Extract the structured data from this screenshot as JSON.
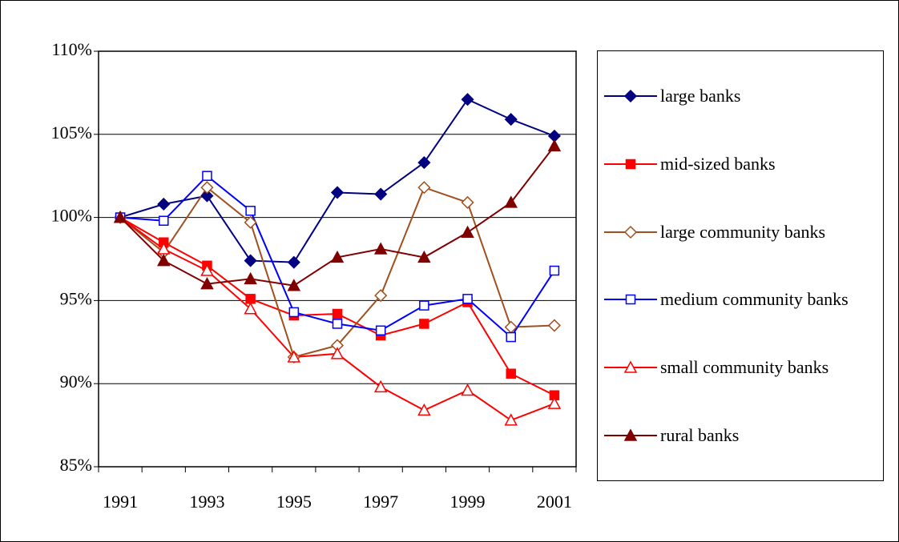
{
  "chart_data": {
    "type": "line",
    "categories": [
      "1991",
      null,
      "1993",
      null,
      "1995",
      null,
      "1997",
      null,
      "1999",
      null,
      "2001"
    ],
    "ylim": [
      85,
      110
    ],
    "yticks": [
      {
        "value": 85,
        "label": "85%"
      },
      {
        "value": 90,
        "label": "90%"
      },
      {
        "value": 95,
        "label": "95%"
      },
      {
        "value": 100,
        "label": "100%"
      },
      {
        "value": 105,
        "label": "105%"
      },
      {
        "value": 110,
        "label": "110%"
      }
    ],
    "grid": true,
    "legend": "right",
    "series": [
      {
        "name": "large banks",
        "color": "#000080",
        "marker": "diamond",
        "filled": true,
        "values": [
          100,
          100.8,
          101.3,
          97.4,
          97.3,
          101.5,
          101.4,
          103.3,
          107.1,
          105.9,
          104.9
        ]
      },
      {
        "name": "mid-sized banks",
        "color": "#ff0000",
        "marker": "square",
        "filled": true,
        "values": [
          100,
          98.5,
          97.1,
          95.1,
          94.1,
          94.2,
          92.9,
          93.6,
          94.9,
          90.6,
          89.3
        ]
      },
      {
        "name": "large community banks",
        "color": "#a0501e",
        "marker": "diamond",
        "filled": false,
        "values": [
          100,
          97.9,
          101.8,
          99.7,
          91.6,
          92.3,
          95.3,
          101.8,
          100.9,
          93.4,
          93.5
        ]
      },
      {
        "name": "medium community banks",
        "color": "#0000ff",
        "marker": "square",
        "filled": false,
        "values": [
          100,
          99.8,
          102.5,
          100.4,
          94.3,
          93.6,
          93.2,
          94.7,
          95.1,
          92.8,
          96.8
        ]
      },
      {
        "name": "small community banks",
        "color": "#ff0000",
        "marker": "triangle",
        "filled": false,
        "values": [
          100,
          98.1,
          96.8,
          94.5,
          91.6,
          91.8,
          89.8,
          88.4,
          89.6,
          87.8,
          88.8
        ]
      },
      {
        "name": "rural banks",
        "color": "#800000",
        "marker": "triangle",
        "filled": true,
        "values": [
          100,
          97.4,
          96.0,
          96.3,
          95.9,
          97.6,
          98.1,
          97.6,
          99.1,
          100.9,
          104.3
        ]
      }
    ]
  }
}
